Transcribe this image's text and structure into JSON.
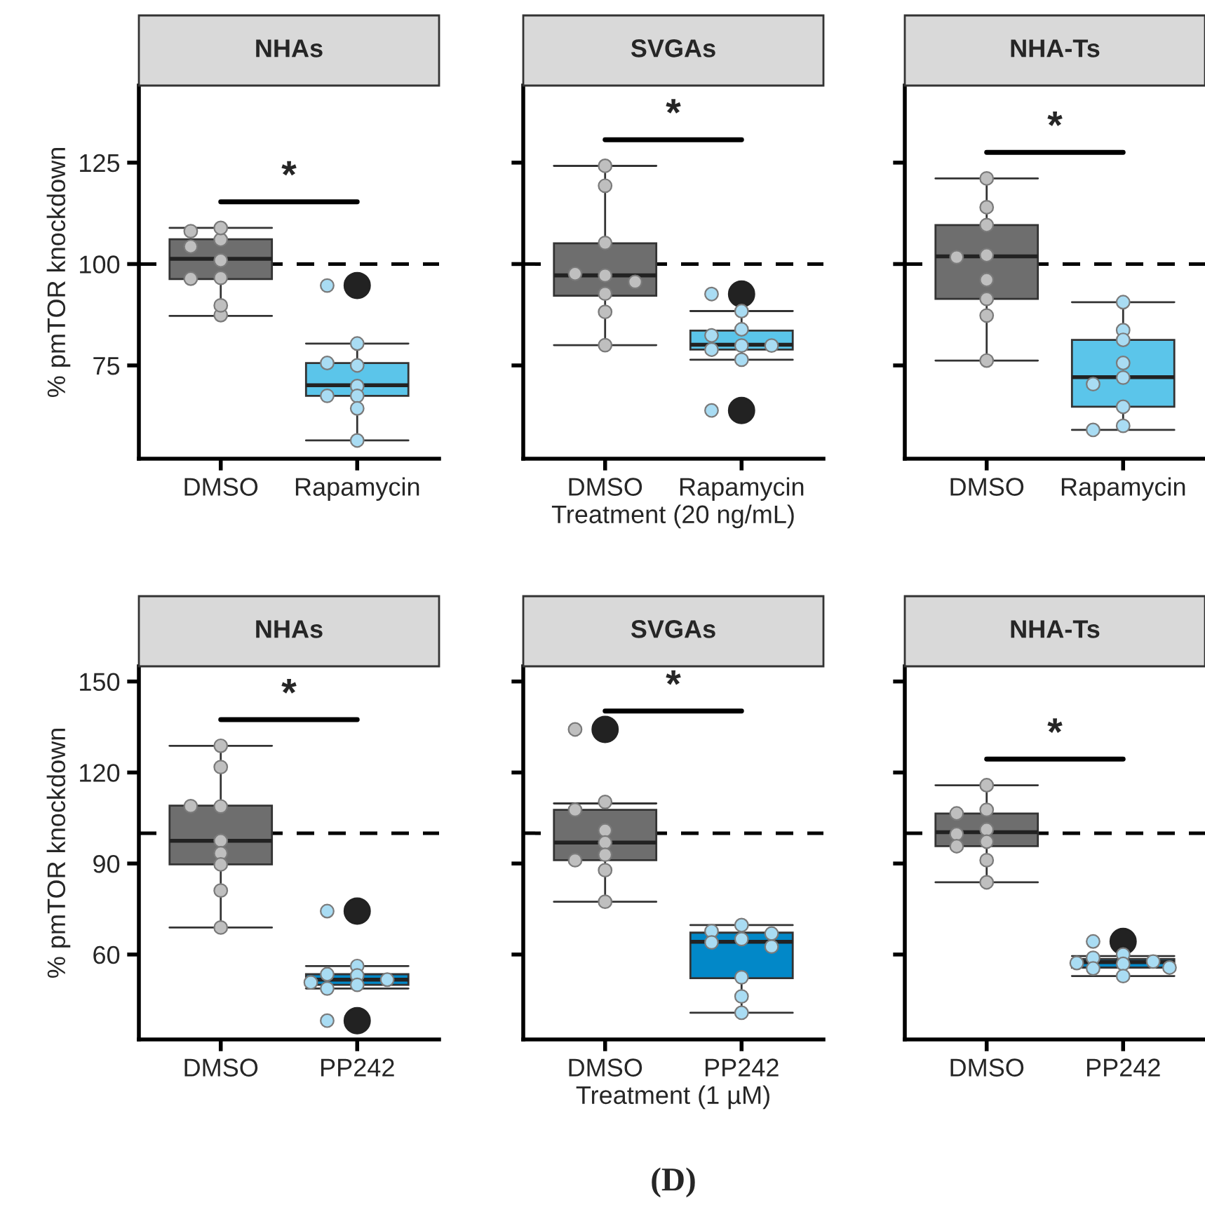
{
  "chart_data": [
    {
      "type": "box",
      "title": "NHAs",
      "ylabel": "% pmTOR knockdown",
      "categories": [
        "DMSO",
        "Rapamycin"
      ],
      "colors": [
        "#6e6e6e",
        "#5bc5ea"
      ],
      "boxes": [
        {
          "low": 87.2,
          "q1": 96.3,
          "median": 101.3,
          "q3": 106.1,
          "high": 108.9
        },
        {
          "low": 56.5,
          "q1": 67.5,
          "median": 70.1,
          "q3": 75.6,
          "high": 80.4,
          "outliers": [
            94.7
          ]
        }
      ],
      "series": [
        {
          "type": "scatter",
          "color": "#bfbfbf",
          "x": [
            "DMSO",
            "DMSO",
            "DMSO",
            "DMSO",
            "DMSO",
            "DMSO",
            "DMSO",
            "DMSO",
            "DMSO"
          ],
          "values": [
            106,
            108.1,
            108.9,
            104.3,
            100.9,
            96.6,
            96.4,
            87.4,
            89.8
          ]
        },
        {
          "type": "scatter",
          "color": "#a9dcf3",
          "x": [
            "Rapamycin",
            "Rapamycin",
            "Rapamycin",
            "Rapamycin",
            "Rapamycin",
            "Rapamycin",
            "Rapamycin",
            "Rapamycin",
            "Rapamycin"
          ],
          "values": [
            94.7,
            80.4,
            75,
            75.6,
            69.9,
            67.5,
            67.5,
            64.4,
            56.5
          ]
        }
      ],
      "ylim": [
        52,
        144
      ],
      "yticks": [
        75,
        100,
        125
      ],
      "ref_lines": [
        {
          "axis": "y",
          "value": 100,
          "line_style": "dashed",
          "color": "#000000"
        }
      ],
      "annotations": [
        "*"
      ]
    },
    {
      "type": "box",
      "title": "SVGAs",
      "xlabel": "Treatment (20 ng/mL)",
      "categories": [
        "DMSO",
        "Rapamycin"
      ],
      "colors": [
        "#6e6e6e",
        "#5bc5ea"
      ],
      "boxes": [
        {
          "low": 80.0,
          "q1": 92.2,
          "median": 97.2,
          "q3": 105.1,
          "high": 124.2
        },
        {
          "low": 76.4,
          "q1": 78.9,
          "median": 80.1,
          "q3": 83.6,
          "high": 88.4,
          "outliers": [
            92.6,
            63.9
          ]
        }
      ],
      "series": [
        {
          "type": "scatter",
          "color": "#bfbfbf",
          "x": [
            "DMSO",
            "DMSO",
            "DMSO",
            "DMSO",
            "DMSO",
            "DMSO",
            "DMSO",
            "DMSO",
            "DMSO"
          ],
          "values": [
            124.2,
            119.3,
            105.2,
            97.2,
            97.6,
            95.6,
            92.7,
            88.2,
            80
          ]
        },
        {
          "type": "scatter",
          "color": "#a9dcf3",
          "x": [
            "Rapamycin",
            "Rapamycin",
            "Rapamycin",
            "Rapamycin",
            "Rapamycin",
            "Rapamycin",
            "Rapamycin",
            "Rapamycin",
            "Rapamycin"
          ],
          "values": [
            92.6,
            88.4,
            83.9,
            82.4,
            79.9,
            78.9,
            79.9,
            76.4,
            63.9
          ]
        }
      ],
      "ylim": [
        52,
        144
      ],
      "yticks": [
        75,
        100,
        125
      ],
      "tick_labels": "x",
      "ref_lines": [
        {
          "axis": "y",
          "value": 100,
          "line_style": "dashed",
          "color": "#000000"
        }
      ],
      "annotations": [
        "*"
      ]
    },
    {
      "type": "box",
      "title": "NHA-Ts",
      "categories": [
        "DMSO",
        "Rapamycin"
      ],
      "colors": [
        "#6e6e6e",
        "#5bc5ea"
      ],
      "boxes": [
        {
          "low": 76.2,
          "q1": 91.4,
          "median": 101.9,
          "q3": 109.6,
          "high": 121.1
        },
        {
          "low": 59.1,
          "q1": 64.8,
          "median": 72.1,
          "q3": 81.3,
          "high": 90.6
        }
      ],
      "series": [
        {
          "type": "scatter",
          "color": "#bfbfbf",
          "x": [
            "DMSO",
            "DMSO",
            "DMSO",
            "DMSO",
            "DMSO",
            "DMSO",
            "DMSO",
            "DMSO",
            "DMSO"
          ],
          "values": [
            121.1,
            114,
            109.6,
            102.2,
            101.7,
            96.1,
            91.4,
            87.3,
            76.2
          ]
        },
        {
          "type": "scatter",
          "color": "#a9dcf3",
          "x": [
            "Rapamycin",
            "Rapamycin",
            "Rapamycin",
            "Rapamycin",
            "Rapamycin",
            "Rapamycin",
            "Rapamycin",
            "Rapamycin",
            "Rapamycin"
          ],
          "values": [
            90.6,
            83.7,
            81.3,
            75.6,
            72,
            70.4,
            64.8,
            60.1,
            59.1
          ]
        }
      ],
      "ylim": [
        52,
        144
      ],
      "yticks": [
        75,
        100,
        125
      ],
      "tick_labels": "x",
      "ref_lines": [
        {
          "axis": "y",
          "value": 100,
          "line_style": "dashed",
          "color": "#000000"
        }
      ],
      "annotations": [
        "*"
      ]
    },
    {
      "type": "box",
      "title": "NHAs",
      "ylabel": "% pmTOR knockdown",
      "categories": [
        "DMSO",
        "PP242"
      ],
      "colors": [
        "#6e6e6e",
        "#0288c8"
      ],
      "boxes": [
        {
          "low": 68.9,
          "q1": 89.7,
          "median": 97.5,
          "q3": 109.1,
          "high": 128.8
        },
        {
          "low": 48.8,
          "q1": 50,
          "median": 51.7,
          "q3": 53.5,
          "high": 56.2,
          "outliers": [
            74.3,
            38.2
          ]
        }
      ],
      "series": [
        {
          "type": "scatter",
          "color": "#bfbfbf",
          "x": [
            "DMSO",
            "DMSO",
            "DMSO",
            "DMSO",
            "DMSO",
            "DMSO",
            "DMSO",
            "DMSO",
            "DMSO"
          ],
          "values": [
            128.8,
            121.8,
            108.8,
            108.9,
            97.5,
            93.4,
            89.7,
            81.1,
            68.9
          ]
        },
        {
          "type": "scatter",
          "color": "#a9dcf3",
          "x": [
            "PP242",
            "PP242",
            "PP242",
            "PP242",
            "PP242",
            "PP242",
            "PP242",
            "PP242",
            "PP242"
          ],
          "values": [
            74.3,
            56.2,
            53.5,
            53.1,
            51.7,
            50.8,
            50,
            48.8,
            38.2
          ]
        }
      ],
      "ylim": [
        32,
        155
      ],
      "yticks": [
        60,
        90,
        120,
        150
      ],
      "ref_lines": [
        {
          "axis": "y",
          "value": 100,
          "line_style": "dashed",
          "color": "#000000"
        }
      ],
      "annotations": [
        "*"
      ]
    },
    {
      "type": "box",
      "title": "SVGAs",
      "xlabel": "Treatment (1 µM)",
      "categories": [
        "DMSO",
        "PP242"
      ],
      "colors": [
        "#6e6e6e",
        "#0288c8"
      ],
      "boxes": [
        {
          "low": 77.4,
          "q1": 91.1,
          "median": 96.9,
          "q3": 107.7,
          "high": 109.8,
          "outliers": [
            134.2
          ]
        },
        {
          "low": 40.8,
          "q1": 52.2,
          "median": 64.2,
          "q3": 67.2,
          "high": 69.7
        }
      ],
      "series": [
        {
          "type": "scatter",
          "color": "#bfbfbf",
          "x": [
            "DMSO",
            "DMSO",
            "DMSO",
            "DMSO",
            "DMSO",
            "DMSO",
            "DMSO",
            "DMSO",
            "DMSO"
          ],
          "values": [
            134.2,
            110.3,
            107.7,
            100.9,
            96.9,
            92.9,
            91.1,
            87.8,
            77.4
          ]
        },
        {
          "type": "scatter",
          "color": "#a9dcf3",
          "x": [
            "PP242",
            "PP242",
            "PP242",
            "PP242",
            "PP242",
            "PP242",
            "PP242",
            "PP242",
            "PP242"
          ],
          "values": [
            69.7,
            67.7,
            66.9,
            65.1,
            64,
            62.6,
            52.5,
            46.2,
            40.8
          ]
        }
      ],
      "ylim": [
        32,
        155
      ],
      "yticks": [
        60,
        90,
        120,
        150
      ],
      "tick_labels": "x",
      "ref_lines": [
        {
          "axis": "y",
          "value": 100,
          "line_style": "dashed",
          "color": "#000000"
        }
      ],
      "annotations": [
        "*",
        "(D)"
      ]
    },
    {
      "type": "box",
      "title": "NHA-Ts",
      "categories": [
        "DMSO",
        "PP242"
      ],
      "colors": [
        "#6e6e6e",
        "#0288c8"
      ],
      "boxes": [
        {
          "low": 83.8,
          "q1": 95.7,
          "median": 100.3,
          "q3": 106.5,
          "high": 115.8
        },
        {
          "low": 52.9,
          "q1": 55.7,
          "median": 57.5,
          "q3": 58.5,
          "high": 59.5,
          "outliers": [
            64.3
          ]
        }
      ],
      "series": [
        {
          "type": "scatter",
          "color": "#bfbfbf",
          "x": [
            "DMSO",
            "DMSO",
            "DMSO",
            "DMSO",
            "DMSO",
            "DMSO",
            "DMSO",
            "DMSO",
            "DMSO"
          ],
          "values": [
            115.8,
            107.7,
            106.5,
            101.2,
            99.7,
            97.2,
            95.7,
            91.1,
            83.8
          ]
        },
        {
          "type": "scatter",
          "color": "#a9dcf3",
          "x": [
            "PP242",
            "PP242",
            "PP242",
            "PP242",
            "PP242",
            "PP242",
            "PP242",
            "PP242",
            "PP242"
          ],
          "values": [
            64.3,
            60,
            58.9,
            57.7,
            57.2,
            56.9,
            55.4,
            55.7,
            52.9
          ]
        }
      ],
      "ylim": [
        32,
        155
      ],
      "yticks": [
        60,
        90,
        120,
        150
      ],
      "tick_labels": "x",
      "ref_lines": [
        {
          "axis": "y",
          "value": 100,
          "line_style": "dashed",
          "color": "#000000"
        }
      ],
      "annotations": [
        "*"
      ]
    }
  ]
}
